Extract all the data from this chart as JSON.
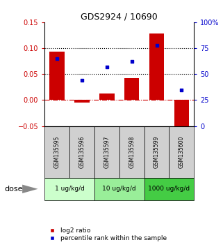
{
  "title": "GDS2924 / 10690",
  "samples": [
    "GSM135595",
    "GSM135596",
    "GSM135597",
    "GSM135598",
    "GSM135599",
    "GSM135600"
  ],
  "log2_ratio": [
    0.093,
    -0.005,
    0.013,
    0.042,
    0.128,
    -0.07
  ],
  "percentile": [
    65,
    44,
    57,
    62,
    78,
    35
  ],
  "bar_color": "#cc0000",
  "marker_color": "#0000cc",
  "ylim_left": [
    -0.05,
    0.15
  ],
  "ylim_right": [
    0,
    100
  ],
  "yticks_left": [
    -0.05,
    0,
    0.05,
    0.1,
    0.15
  ],
  "yticks_right": [
    0,
    25,
    50,
    75,
    100
  ],
  "ytick_labels_right": [
    "0",
    "25",
    "50",
    "75",
    "100%"
  ],
  "hlines": [
    0.1,
    0.05
  ],
  "dose_groups": [
    {
      "label": "1 ug/kg/d",
      "samples": [
        0,
        1
      ],
      "color": "#ccffcc"
    },
    {
      "label": "10 ug/kg/d",
      "samples": [
        2,
        3
      ],
      "color": "#99ee99"
    },
    {
      "label": "1000 ug/kg/d",
      "samples": [
        4,
        5
      ],
      "color": "#44cc44"
    }
  ],
  "sample_bg_color": "#d0d0d0",
  "dose_label": "dose",
  "legend_log2": "log2 ratio",
  "legend_pct": "percentile rank within the sample",
  "bar_width": 0.6
}
